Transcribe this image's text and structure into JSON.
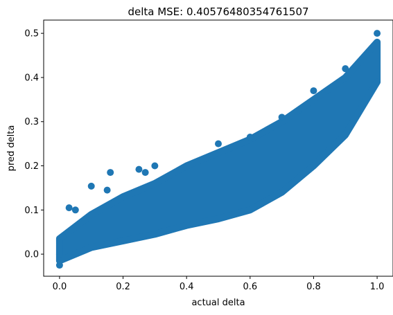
{
  "chart_data": {
    "type": "scatter",
    "title": "delta MSE: 0.40576480354761507",
    "xlabel": "actual delta",
    "ylabel": "pred delta",
    "xlim": [
      -0.05,
      1.05
    ],
    "ylim": [
      -0.05,
      0.53
    ],
    "xticks": [
      0.0,
      0.2,
      0.4,
      0.6,
      0.8,
      1.0
    ],
    "xtick_labels": [
      "0.0",
      "0.2",
      "0.4",
      "0.6",
      "0.8",
      "1.0"
    ],
    "yticks": [
      0.0,
      0.1,
      0.2,
      0.3,
      0.4,
      0.5
    ],
    "ytick_labels": [
      "0.0",
      "0.1",
      "0.2",
      "0.3",
      "0.4",
      "0.5"
    ],
    "grid": false,
    "color": "#1f77b4",
    "bands": {
      "x": [
        0.0,
        0.1,
        0.2,
        0.3,
        0.4,
        0.5,
        0.6,
        0.7,
        0.8,
        0.9,
        1.0
      ],
      "upper": [
        0.035,
        0.09,
        0.13,
        0.16,
        0.2,
        0.23,
        0.26,
        0.3,
        0.35,
        0.4,
        0.48
      ],
      "lower": [
        -0.015,
        0.015,
        0.03,
        0.045,
        0.065,
        0.08,
        0.1,
        0.14,
        0.2,
        0.27,
        0.39
      ]
    },
    "points": [
      {
        "x": 0.0,
        "y": 0.0
      },
      {
        "x": 0.0,
        "y": 0.03
      },
      {
        "x": 0.0,
        "y": -0.025
      },
      {
        "x": 0.01,
        "y": 0.04
      },
      {
        "x": 0.03,
        "y": 0.105
      },
      {
        "x": 0.05,
        "y": 0.1
      },
      {
        "x": 0.1,
        "y": 0.154
      },
      {
        "x": 0.15,
        "y": 0.145
      },
      {
        "x": 0.16,
        "y": 0.185
      },
      {
        "x": 0.25,
        "y": 0.192
      },
      {
        "x": 0.27,
        "y": 0.185
      },
      {
        "x": 0.3,
        "y": 0.2
      },
      {
        "x": 0.5,
        "y": 0.25
      },
      {
        "x": 0.6,
        "y": 0.265
      },
      {
        "x": 0.7,
        "y": 0.31
      },
      {
        "x": 0.8,
        "y": 0.37
      },
      {
        "x": 0.9,
        "y": 0.42
      },
      {
        "x": 1.0,
        "y": 0.5
      },
      {
        "x": 1.0,
        "y": 0.39
      }
    ]
  }
}
